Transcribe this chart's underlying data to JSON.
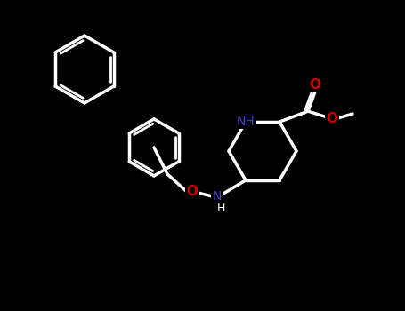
{
  "background_color": "#000000",
  "bond_color": "#ffffff",
  "N_color": "#4444cc",
  "O_color": "#cc0000",
  "line_width": 2.5,
  "font_size": 10,
  "fig_width": 4.55,
  "fig_height": 3.5,
  "dpi": 100,
  "atoms": {
    "N_NH": {
      "label": "NH",
      "color": "#4444cc"
    },
    "N_ONH": {
      "label": "N",
      "color": "#4444cc"
    },
    "O_ether": {
      "label": "O",
      "color": "#cc0000"
    },
    "O_carbonyl": {
      "label": "O",
      "color": "#cc0000"
    },
    "O_ester": {
      "label": "O",
      "color": "#cc0000"
    }
  }
}
